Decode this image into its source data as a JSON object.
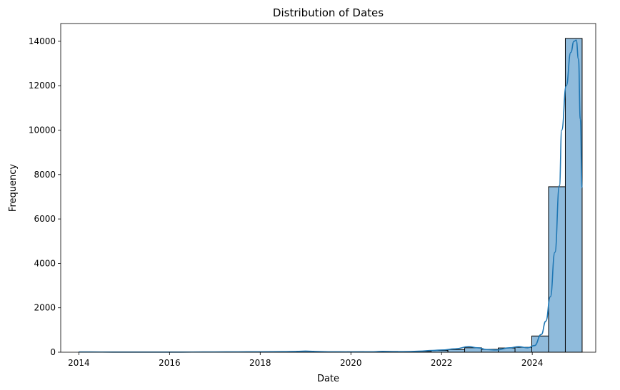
{
  "chart_data": {
    "type": "bar",
    "title": "Distribution of Dates",
    "xlabel": "Date",
    "ylabel": "Frequency",
    "xlim": [
      2013.6,
      2025.4
    ],
    "ylim": [
      0,
      14800
    ],
    "x_ticks": [
      2014,
      2016,
      2018,
      2020,
      2022,
      2024
    ],
    "y_ticks": [
      0,
      2000,
      4000,
      6000,
      8000,
      10000,
      12000,
      14000
    ],
    "grid": false,
    "bar_color": "#8fbbdc",
    "edge_color": "#000000",
    "kde_color": "#1f77b4",
    "bins": [
      {
        "start": 2014.0,
        "end": 2014.37,
        "count": 5
      },
      {
        "start": 2014.37,
        "end": 2014.74,
        "count": 4
      },
      {
        "start": 2014.74,
        "end": 2015.11,
        "count": 3
      },
      {
        "start": 2015.11,
        "end": 2015.48,
        "count": 3
      },
      {
        "start": 2015.48,
        "end": 2015.85,
        "count": 4
      },
      {
        "start": 2015.85,
        "end": 2016.22,
        "count": 4
      },
      {
        "start": 2016.22,
        "end": 2016.59,
        "count": 5
      },
      {
        "start": 2016.59,
        "end": 2016.96,
        "count": 6
      },
      {
        "start": 2016.96,
        "end": 2017.33,
        "count": 6
      },
      {
        "start": 2017.33,
        "end": 2017.7,
        "count": 10
      },
      {
        "start": 2017.7,
        "end": 2018.07,
        "count": 12
      },
      {
        "start": 2018.07,
        "end": 2018.44,
        "count": 8
      },
      {
        "start": 2018.44,
        "end": 2018.81,
        "count": 20
      },
      {
        "start": 2018.81,
        "end": 2019.18,
        "count": 45
      },
      {
        "start": 2019.18,
        "end": 2019.55,
        "count": 15
      },
      {
        "start": 2019.55,
        "end": 2019.92,
        "count": 12
      },
      {
        "start": 2019.92,
        "end": 2020.29,
        "count": 20
      },
      {
        "start": 2020.29,
        "end": 2020.66,
        "count": 15
      },
      {
        "start": 2020.66,
        "end": 2021.03,
        "count": 35
      },
      {
        "start": 2021.03,
        "end": 2021.4,
        "count": 25
      },
      {
        "start": 2021.4,
        "end": 2021.77,
        "count": 40
      },
      {
        "start": 2021.77,
        "end": 2022.14,
        "count": 80
      },
      {
        "start": 2022.14,
        "end": 2022.51,
        "count": 120
      },
      {
        "start": 2022.51,
        "end": 2022.88,
        "count": 200
      },
      {
        "start": 2022.88,
        "end": 2023.25,
        "count": 130
      },
      {
        "start": 2023.25,
        "end": 2023.62,
        "count": 190
      },
      {
        "start": 2023.62,
        "end": 2023.99,
        "count": 220
      },
      {
        "start": 2023.99,
        "end": 2024.36,
        "count": 730
      },
      {
        "start": 2024.36,
        "end": 2024.73,
        "count": 7450
      },
      {
        "start": 2024.73,
        "end": 2025.1,
        "count": 14130
      }
    ],
    "kde": {
      "x": [
        2014.0,
        2014.5,
        2015.0,
        2015.5,
        2016.0,
        2016.5,
        2017.0,
        2017.5,
        2018.0,
        2018.5,
        2018.8,
        2019.0,
        2019.2,
        2019.5,
        2020.0,
        2020.5,
        2020.7,
        2021.0,
        2021.3,
        2021.5,
        2021.8,
        2022.0,
        2022.3,
        2022.6,
        2022.8,
        2023.0,
        2023.2,
        2023.5,
        2023.7,
        2023.9,
        2024.05,
        2024.2,
        2024.3,
        2024.4,
        2024.5,
        2024.6,
        2024.65,
        2024.75,
        2024.85,
        2024.92,
        2024.97,
        2025.02,
        2025.06,
        2025.1
      ],
      "y": [
        10,
        8,
        6,
        5,
        6,
        8,
        10,
        15,
        20,
        25,
        35,
        50,
        35,
        20,
        15,
        20,
        40,
        25,
        30,
        45,
        80,
        100,
        150,
        250,
        200,
        120,
        100,
        200,
        250,
        200,
        300,
        800,
        1400,
        2500,
        4500,
        7500,
        10000,
        12000,
        13500,
        14000,
        14050,
        13200,
        10500,
        7400
      ]
    }
  }
}
